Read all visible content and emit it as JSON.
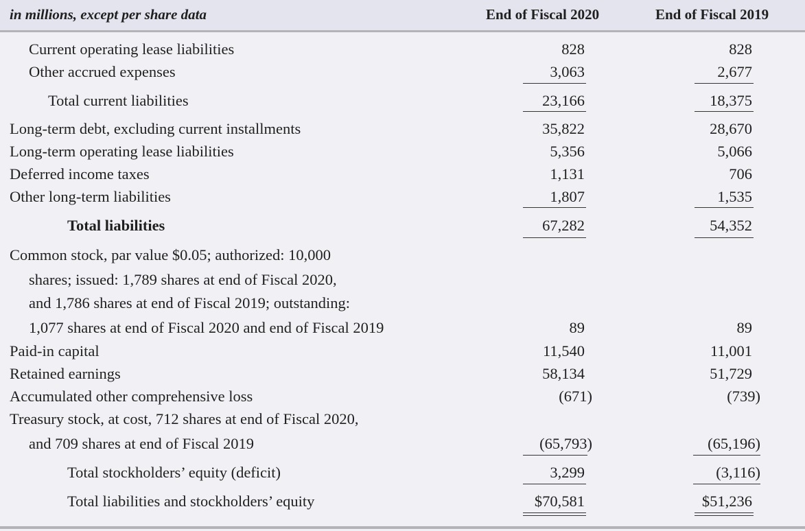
{
  "header": {
    "caption": "in millions, except per share data",
    "col1": "End of Fiscal 2020",
    "col2": "End of Fiscal 2019"
  },
  "rows": [
    {
      "label": "Current operating lease liabilities",
      "v2020": "828",
      "v2019": "828"
    },
    {
      "label": "Other accrued expenses",
      "v2020": "3,063",
      "v2019": "2,677"
    },
    {
      "label": "Total current liabilities",
      "v2020": "23,166",
      "v2019": "18,375"
    },
    {
      "label": "Long-term debt, excluding current installments",
      "v2020": "35,822",
      "v2019": "28,670"
    },
    {
      "label": "Long-term operating lease liabilities",
      "v2020": "5,356",
      "v2019": "5,066"
    },
    {
      "label": "Deferred income taxes",
      "v2020": "1,131",
      "v2019": "706"
    },
    {
      "label": "Other long-term liabilities",
      "v2020": "1,807",
      "v2019": "1,535"
    },
    {
      "label": "Total liabilities",
      "v2020": "67,282",
      "v2019": "54,352"
    },
    {
      "label": "Common stock, par value $0.05; authorized: 10,000"
    },
    {
      "label": "shares; issued: 1,789 shares at end of Fiscal 2020,"
    },
    {
      "label": "and 1,786 shares at end of Fiscal 2019; outstanding:"
    },
    {
      "label": "1,077 shares at end of Fiscal 2020 and end of Fiscal 2019",
      "v2020": "89",
      "v2019": "89"
    },
    {
      "label": "Paid-in capital",
      "v2020": "11,540",
      "v2019": "11,001"
    },
    {
      "label": "Retained earnings",
      "v2020": "58,134",
      "v2019": "51,729"
    },
    {
      "label": "Accumulated other comprehensive loss",
      "v2020": "(671)",
      "v2019": "(739)"
    },
    {
      "label": "Treasury stock, at cost, 712 shares at end of Fiscal 2020,"
    },
    {
      "label": "and 709 shares at end of Fiscal 2019",
      "v2020": "(65,793)",
      "v2019": "(65,196)"
    },
    {
      "label": "Total stockholders’ equity (deficit)",
      "v2020": "3,299",
      "v2019": "(3,116)"
    },
    {
      "label": "Total liabilities and stockholders’ equity",
      "v2020": "$70,581",
      "v2019": "$51,236"
    }
  ]
}
